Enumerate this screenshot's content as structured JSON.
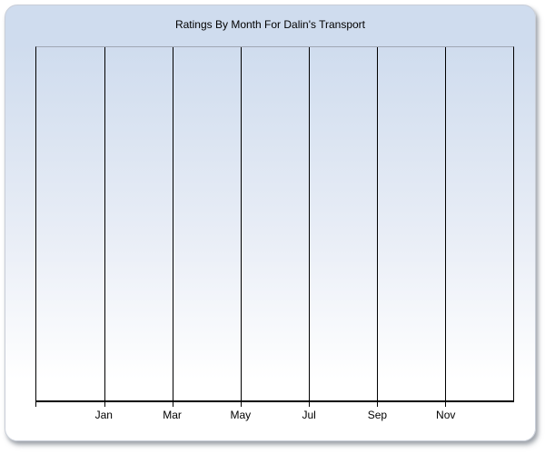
{
  "colors": {
    "gradient_top": "#cfdcee",
    "gradient_mid": "#e8edf6",
    "gradient_bottom": "#ffffff",
    "panel_border": "#c9ced8",
    "plot_top_border": "#a0a7b4",
    "axis_color": "#000000",
    "title_color": "#000000",
    "label_color": "#000000"
  },
  "chart_data": {
    "type": "line",
    "title": "Ratings By Month For Dalin's Transport",
    "xlabel": "",
    "ylabel": "",
    "x_tick_labels": [
      "Jan",
      "Mar",
      "May",
      "Jul",
      "Sep",
      "Nov"
    ],
    "x_divisions": 7,
    "y_tick_labels": [],
    "series": [],
    "plot_empty": true,
    "grid": "vertical",
    "legend_position": "none"
  }
}
